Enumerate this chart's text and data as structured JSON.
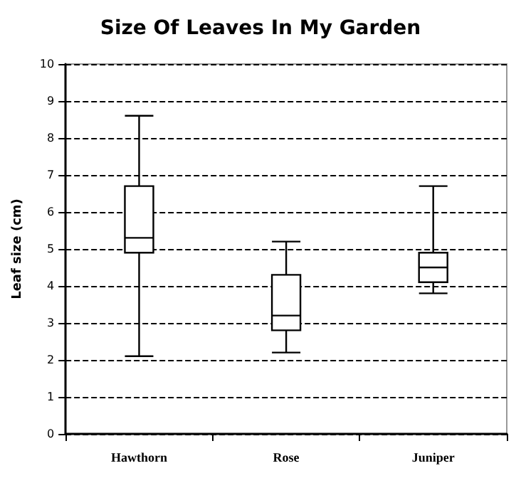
{
  "chart_data": {
    "type": "box",
    "title": "Size Of Leaves In My Garden",
    "ylabel": "Leaf size (cm)",
    "categories": [
      "Hawthorn",
      "Rose",
      "Juniper"
    ],
    "boxes": [
      {
        "low": 2.1,
        "q1": 4.9,
        "median": 5.3,
        "q3": 6.7,
        "high": 8.6
      },
      {
        "low": 2.2,
        "q1": 2.8,
        "median": 3.2,
        "q3": 4.3,
        "high": 5.2
      },
      {
        "low": 3.8,
        "q1": 4.1,
        "median": 4.5,
        "q3": 4.9,
        "high": 6.7
      }
    ],
    "color": "#000000",
    "ylim": [
      0,
      10
    ],
    "yticks": [
      0,
      1,
      2,
      3,
      4,
      5,
      6,
      7,
      8,
      9,
      10
    ],
    "grid": "y",
    "line_style": "dashed"
  }
}
